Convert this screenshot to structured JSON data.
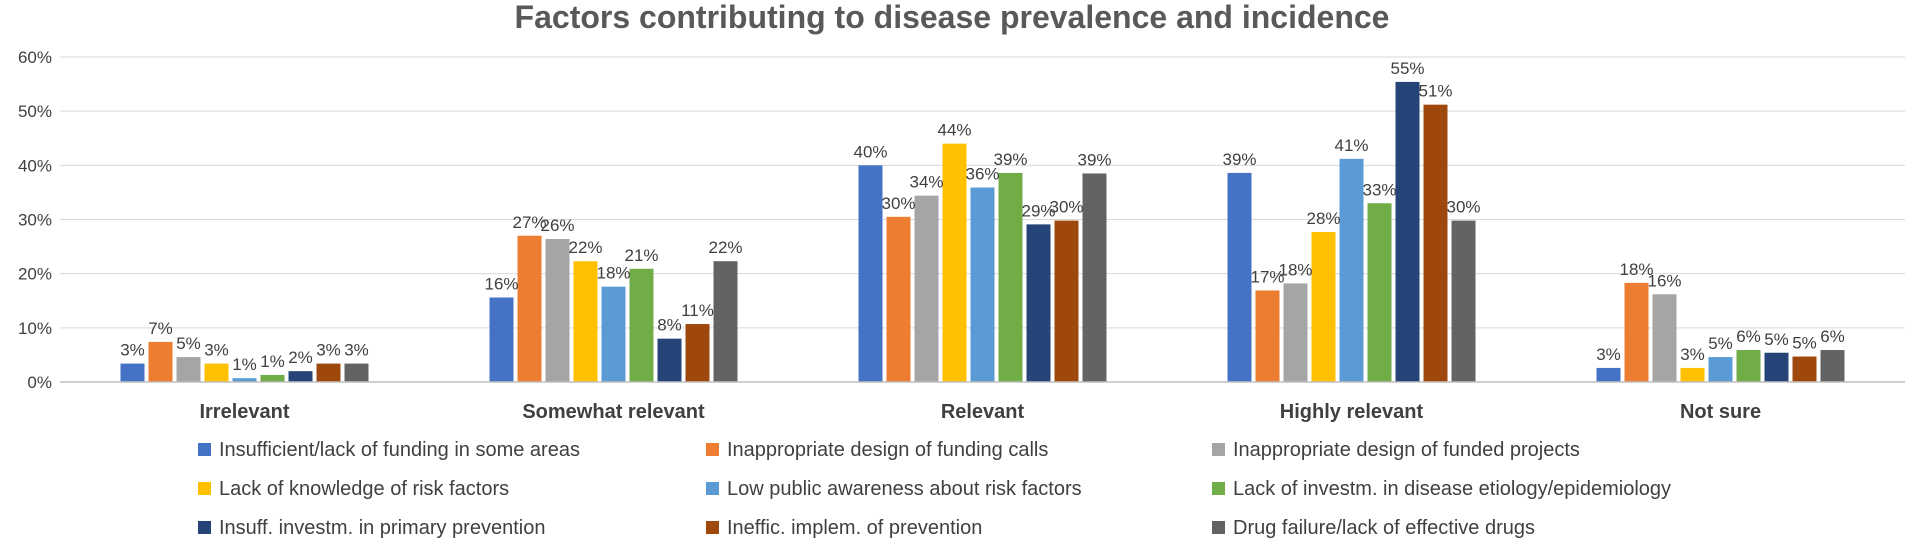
{
  "chart_data": {
    "type": "bar",
    "title": "Factors contributing to disease prevalence and incidence",
    "xlabel": "",
    "ylabel": "",
    "ylim": [
      0,
      60
    ],
    "y_ticks": [
      "0%",
      "10%",
      "20%",
      "30%",
      "40%",
      "50%",
      "60%"
    ],
    "y_tick_values": [
      0,
      10,
      20,
      30,
      40,
      50,
      60
    ],
    "grid": true,
    "legend_position": "bottom",
    "categories": [
      "Irrelevant",
      "Somewhat relevant",
      "Relevant",
      "Highly relevant",
      "Not sure"
    ],
    "series": [
      {
        "name": "Insufficient/lack of funding in some areas",
        "color": "#4472c4",
        "values": [
          3.4,
          15.6,
          40.0,
          38.6,
          2.6
        ],
        "labels": [
          "3%",
          "16%",
          "40%",
          "39%",
          "3%"
        ]
      },
      {
        "name": "Inappropriate design of funding calls",
        "color": "#ed7d31",
        "values": [
          7.4,
          27.0,
          30.5,
          16.9,
          18.3
        ],
        "labels": [
          "7%",
          "27%",
          "30%",
          "17%",
          "18%"
        ]
      },
      {
        "name": "Inappropriate design of funded projects",
        "color": "#a5a5a5",
        "values": [
          4.6,
          26.4,
          34.4,
          18.2,
          16.2
        ],
        "labels": [
          "5%",
          "26%",
          "34%",
          "18%",
          "16%"
        ]
      },
      {
        "name": "Lack of knowledge of risk factors",
        "color": "#ffc000",
        "values": [
          3.4,
          22.3,
          44.0,
          27.7,
          2.6
        ],
        "labels": [
          "3%",
          "22%",
          "44%",
          "28%",
          "3%"
        ]
      },
      {
        "name": "Low public awareness about risk factors",
        "color": "#5b9bd5",
        "values": [
          0.7,
          17.6,
          35.9,
          41.2,
          4.6
        ],
        "labels": [
          "1%",
          "18%",
          "36%",
          "41%",
          "5%"
        ]
      },
      {
        "name": "Lack of investm. in disease etiology/epidemiology",
        "color": "#70ad47",
        "values": [
          1.3,
          20.9,
          38.6,
          33.0,
          5.9
        ],
        "labels": [
          "1%",
          "21%",
          "39%",
          "33%",
          "6%"
        ]
      },
      {
        "name": "Insuff. investm. in primary prevention",
        "color": "#264478",
        "values": [
          2.0,
          8.0,
          29.1,
          55.4,
          5.4
        ],
        "labels": [
          "2%",
          "8%",
          "29%",
          "55%",
          "5%"
        ]
      },
      {
        "name": "Ineffic. implem. of prevention",
        "color": "#9e480e",
        "values": [
          3.4,
          10.7,
          29.8,
          51.2,
          4.7
        ],
        "labels": [
          "3%",
          "11%",
          "30%",
          "51%",
          "5%"
        ]
      },
      {
        "name": "Drug failure/lack of effective drugs",
        "color": "#636363",
        "values": [
          3.4,
          22.3,
          38.5,
          29.8,
          5.9
        ],
        "labels": [
          "3%",
          "22%",
          "39%",
          "30%",
          "6%"
        ]
      }
    ]
  }
}
